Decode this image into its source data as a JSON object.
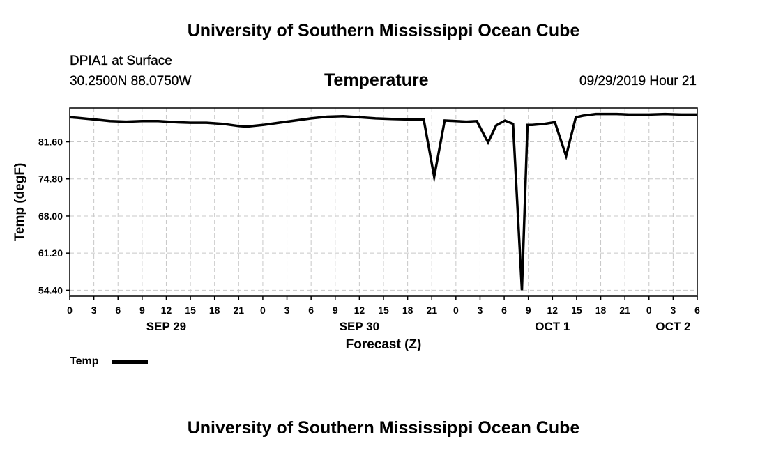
{
  "header": {
    "title": "University of Southern Mississippi Ocean Cube",
    "station": "DPIA1 at Surface",
    "coords": "30.2500N 88.0750W",
    "variable": "Temperature",
    "datetime": "09/29/2019 Hour 21"
  },
  "footer": {
    "title": "University of Southern Mississippi Ocean Cube"
  },
  "legend": {
    "label": "Temp"
  },
  "chart_data": {
    "type": "line",
    "title": "Temperature",
    "xlabel": "Forecast (Z)",
    "ylabel": "Temp (degF)",
    "x_unit": "forecast hours (0 = SEP 29 00Z)",
    "xlim": [
      0,
      78
    ],
    "ylim": [
      53.3,
      87.8
    ],
    "yticks": [
      54.4,
      61.2,
      68.0,
      74.8,
      81.6
    ],
    "ytick_labels": [
      "54.40",
      "61.20",
      "68.00",
      "74.80",
      "81.60"
    ],
    "xticks": [
      0,
      3,
      6,
      9,
      12,
      15,
      18,
      21,
      24,
      27,
      30,
      33,
      36,
      39,
      42,
      45,
      48,
      51,
      54,
      57,
      60,
      63,
      66,
      69,
      72,
      75,
      78
    ],
    "xtick_labels": [
      "0",
      "3",
      "6",
      "9",
      "12",
      "15",
      "18",
      "21",
      "0",
      "3",
      "6",
      "9",
      "12",
      "15",
      "18",
      "21",
      "0",
      "3",
      "6",
      "9",
      "12",
      "15",
      "18",
      "21",
      "0",
      "3",
      "6"
    ],
    "date_labels": [
      {
        "label": "SEP 29",
        "hour": 12
      },
      {
        "label": "SEP 30",
        "hour": 36
      },
      {
        "label": "OCT 1",
        "hour": 60
      },
      {
        "label": "OCT 2",
        "hour": 75
      }
    ],
    "grid": true,
    "series": [
      {
        "name": "Temp",
        "x": [
          0,
          1,
          3,
          5,
          7,
          9,
          11,
          13,
          15,
          17,
          19,
          21,
          22,
          24,
          26,
          28,
          30,
          32,
          34,
          36,
          38,
          40,
          42,
          44,
          45.3,
          46.6,
          48,
          49.3,
          50.6,
          52,
          53,
          54.1,
          55.1,
          56.2,
          56.9,
          57.5,
          58.2,
          59,
          60.3,
          61.7,
          62.9,
          63.8,
          65.4,
          66.7,
          68,
          69.5,
          71,
          72,
          74,
          76,
          78
        ],
        "y": [
          86.1,
          86.0,
          85.7,
          85.4,
          85.3,
          85.4,
          85.4,
          85.2,
          85.1,
          85.1,
          84.9,
          84.5,
          84.4,
          84.7,
          85.1,
          85.5,
          85.9,
          86.2,
          86.3,
          86.1,
          85.9,
          85.8,
          85.7,
          85.7,
          75.2,
          85.5,
          85.4,
          85.3,
          85.4,
          81.5,
          84.6,
          85.5,
          84.9,
          54.4,
          84.7,
          84.7,
          84.8,
          84.9,
          85.2,
          79.0,
          86.1,
          86.4,
          86.7,
          86.7,
          86.7,
          86.6,
          86.6,
          86.6,
          86.7,
          86.6,
          86.6
        ]
      }
    ]
  }
}
